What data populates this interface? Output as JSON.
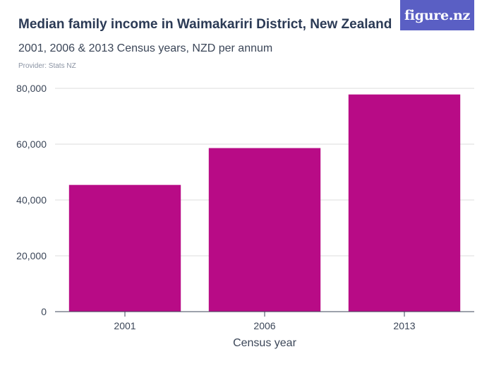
{
  "header": {
    "title": "Median family income in Waimakariri District, New Zealand",
    "subtitle": "2001, 2006 & 2013 Census years, NZD per annum",
    "provider": "Provider: Stats NZ"
  },
  "logo": {
    "text": "figure.nz",
    "color": "#5a5fc4"
  },
  "chart_data": {
    "type": "bar",
    "categories": [
      "2001",
      "2006",
      "2013"
    ],
    "values": [
      45400,
      58600,
      77800
    ],
    "title": "Median family income in Waimakariri District, New Zealand",
    "subtitle": "2001, 2006 & 2013 Census years, NZD per annum",
    "xlabel": "Census year",
    "ylabel": "",
    "ylim": [
      0,
      80000
    ],
    "yticks": [
      0,
      20000,
      40000,
      60000,
      80000
    ],
    "ytick_labels": [
      "0",
      "20,000",
      "40,000",
      "60,000",
      "80,000"
    ],
    "grid": true,
    "bar_color": "#b80b86",
    "grid_color": "#dcdcdc",
    "axis_color": "#3b4658"
  }
}
